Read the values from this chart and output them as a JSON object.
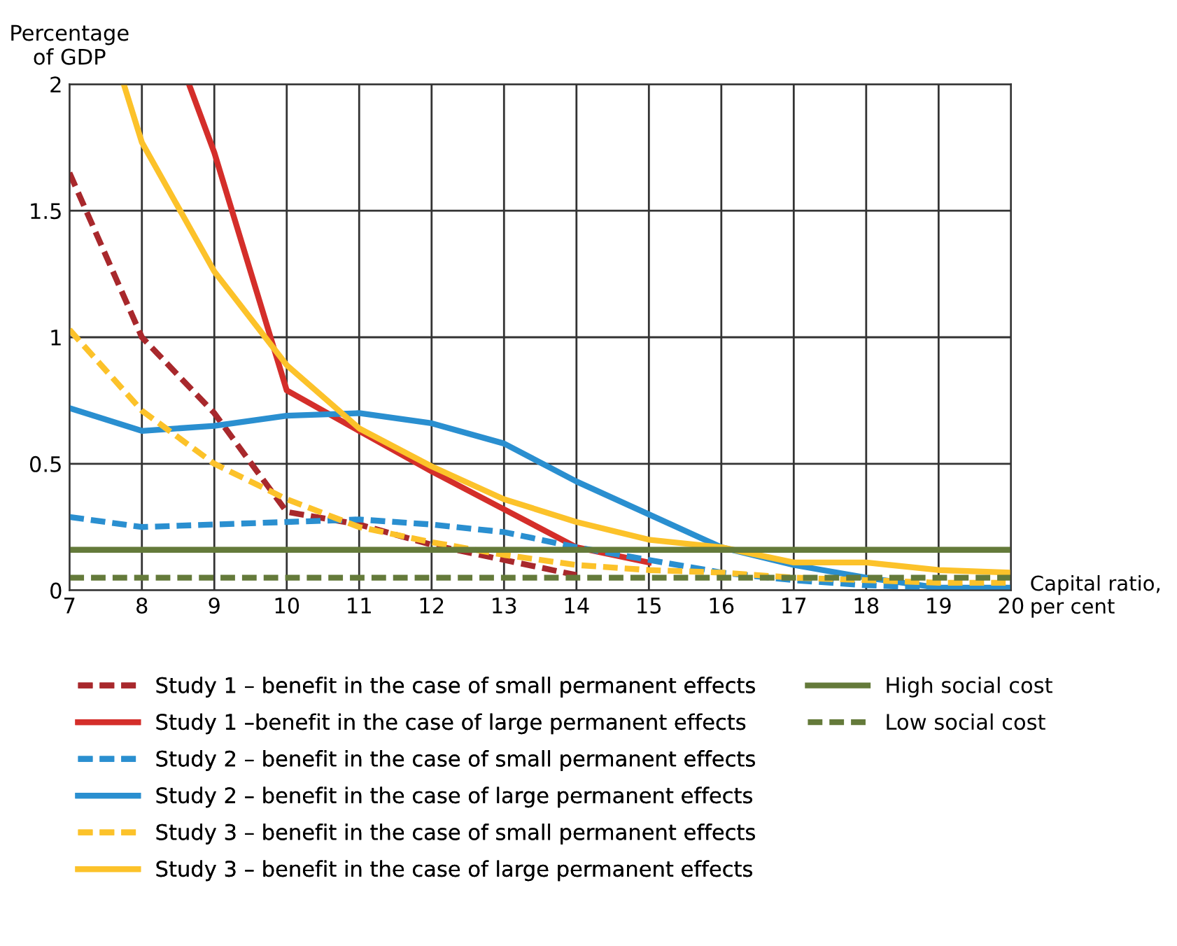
{
  "chart_data": {
    "type": "line",
    "ylabel": "Percentage\nof GDP",
    "xlabel": "Capital ratio,\nper cent",
    "x": [
      7,
      8,
      9,
      10,
      11,
      12,
      13,
      14,
      15,
      16,
      17,
      18,
      19,
      20
    ],
    "xlim": [
      7,
      20
    ],
    "xticks": [
      7,
      8,
      9,
      10,
      11,
      12,
      13,
      14,
      15,
      16,
      17,
      18,
      19,
      20
    ],
    "ylim": [
      0,
      2
    ],
    "yticks": [
      0,
      0.5,
      1,
      1.5,
      2
    ],
    "grid": true,
    "legend": "bottom",
    "marker": "none",
    "series": [
      {
        "name": "Study 1 – benefit in the case of small permanent effects",
        "color": "#a8282c",
        "line_style": "dashed",
        "x": [
          7,
          8,
          9,
          10,
          11,
          12,
          13,
          14
        ],
        "values": [
          1.65,
          1.0,
          0.7,
          0.31,
          0.26,
          0.18,
          0.12,
          0.06
        ]
      },
      {
        "name": "Study 1 –benefit in the case of large permanent effects",
        "color": "#d42e2a",
        "line_style": "solid",
        "x": [
          8.65,
          9,
          10,
          11,
          12,
          13,
          14,
          15
        ],
        "values": [
          2.0,
          1.73,
          0.79,
          0.63,
          0.47,
          0.32,
          0.17,
          0.11
        ]
      },
      {
        "name": "Study 2 – benefit in the case of small permanent effects",
        "color": "#2a8fd0",
        "line_style": "dashed",
        "values": [
          0.29,
          0.25,
          0.26,
          0.27,
          0.28,
          0.26,
          0.23,
          0.17,
          0.12,
          0.07,
          0.04,
          0.02,
          0.01,
          0.01
        ]
      },
      {
        "name": "Study 2 – benefit in the case of large permanent effects",
        "color": "#2a8fd0",
        "line_style": "solid",
        "values": [
          0.72,
          0.63,
          0.65,
          0.69,
          0.7,
          0.66,
          0.58,
          0.43,
          0.3,
          0.17,
          0.1,
          0.05,
          0.01,
          0.01
        ]
      },
      {
        "name": "Study 3 – benefit in the case of small permanent effects",
        "color": "#fcc22a",
        "line_style": "dashed",
        "values": [
          1.03,
          0.71,
          0.5,
          0.36,
          0.25,
          0.19,
          0.14,
          0.1,
          0.08,
          0.07,
          0.05,
          0.04,
          0.03,
          0.03
        ]
      },
      {
        "name": "Study 3 – benefit in the case of large permanent effects",
        "color": "#fcc22a",
        "line_style": "solid",
        "x": [
          7.75,
          8,
          9,
          10,
          11,
          12,
          13,
          14,
          15,
          16,
          17,
          18,
          19,
          20
        ],
        "values": [
          2.0,
          1.77,
          1.26,
          0.89,
          0.64,
          0.49,
          0.36,
          0.27,
          0.2,
          0.17,
          0.11,
          0.11,
          0.08,
          0.07
        ]
      },
      {
        "name": "High social cost",
        "color": "#647a3a",
        "line_style": "solid",
        "values": [
          0.16,
          0.16,
          0.16,
          0.16,
          0.16,
          0.16,
          0.16,
          0.16,
          0.16,
          0.16,
          0.16,
          0.16,
          0.16,
          0.16
        ]
      },
      {
        "name": "Low social cost",
        "color": "#647a3a",
        "line_style": "dashed",
        "values": [
          0.05,
          0.05,
          0.05,
          0.05,
          0.05,
          0.05,
          0.05,
          0.05,
          0.05,
          0.05,
          0.05,
          0.05,
          0.05,
          0.05
        ]
      }
    ]
  }
}
